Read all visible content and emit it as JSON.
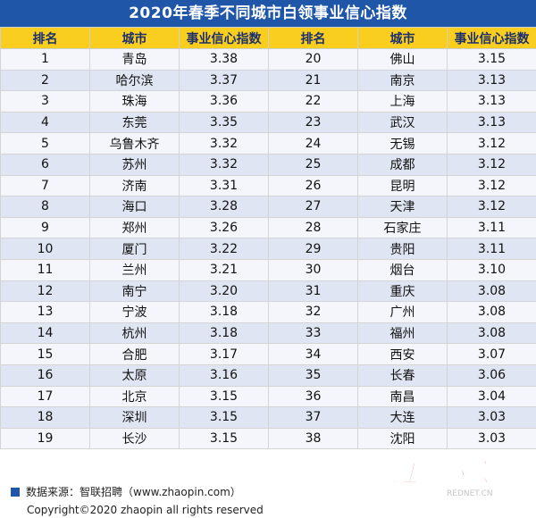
{
  "title": "2020年春季不同城市白领事业信心指数",
  "headers": [
    "排名",
    "城市",
    "事业信心指数",
    "排名",
    "城市",
    "事业信心指数"
  ],
  "rows": [
    [
      "1",
      "青岛",
      "3.38",
      "20",
      "佛山",
      "3.15"
    ],
    [
      "2",
      "哈尔滨",
      "3.37",
      "21",
      "南京",
      "3.13"
    ],
    [
      "3",
      "珠海",
      "3.36",
      "22",
      "上海",
      "3.13"
    ],
    [
      "4",
      "东莞",
      "3.35",
      "23",
      "武汉",
      "3.13"
    ],
    [
      "5",
      "乌鲁木齐",
      "3.32",
      "24",
      "无锡",
      "3.12"
    ],
    [
      "6",
      "苏州",
      "3.32",
      "25",
      "成都",
      "3.12"
    ],
    [
      "7",
      "济南",
      "3.31",
      "26",
      "昆明",
      "3.12"
    ],
    [
      "8",
      "海口",
      "3.28",
      "27",
      "天津",
      "3.12"
    ],
    [
      "9",
      "郑州",
      "3.26",
      "28",
      "石家庄",
      "3.11"
    ],
    [
      "10",
      "厦门",
      "3.22",
      "29",
      "贵阳",
      "3.11"
    ],
    [
      "11",
      "兰州",
      "3.21",
      "30",
      "烟台",
      "3.10"
    ],
    [
      "12",
      "南宁",
      "3.20",
      "31",
      "重庆",
      "3.08"
    ],
    [
      "13",
      "宁波",
      "3.18",
      "32",
      "广州",
      "3.08"
    ],
    [
      "14",
      "杭州",
      "3.18",
      "33",
      "福州",
      "3.08"
    ],
    [
      "15",
      "合肥",
      "3.17",
      "34",
      "西安",
      "3.07"
    ],
    [
      "16",
      "太原",
      "3.16",
      "35",
      "长春",
      "3.06"
    ],
    [
      "17",
      "北京",
      "3.15",
      "36",
      "南昌",
      "3.04"
    ],
    [
      "18",
      "深圳",
      "3.15",
      "37",
      "大连",
      "3.03"
    ],
    [
      "19",
      "长沙",
      "3.15",
      "38",
      "沈阳",
      "3.03"
    ]
  ],
  "footer": {
    "source": "数据来源：智联招聘（www.zhaopin.com）",
    "copyright": "Copyright©2020 zhaopin all rights reserved"
  },
  "watermark": {
    "text": "红网时刻",
    "subtext": "REDNET.CN"
  },
  "colors": {
    "title_bg": "#1f56a8",
    "header_bg": "#f9ce1f",
    "row_even": "#dfe5f2",
    "row_odd": "#f4f6fb",
    "watermark_red": "#d7141a"
  }
}
